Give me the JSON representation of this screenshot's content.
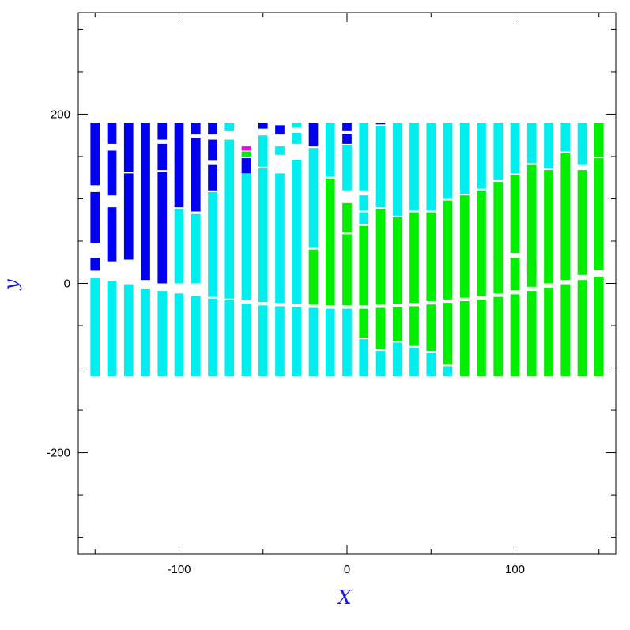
{
  "chart_data": {
    "type": "heatmap",
    "title": "",
    "xlabel": "X",
    "ylabel": "y",
    "xlim": [
      -160,
      160
    ],
    "ylim": [
      -320,
      320
    ],
    "x_ticks": [
      -100,
      0,
      100
    ],
    "y_ticks": [
      -200,
      0,
      200
    ],
    "colors": {
      "blue": "#0000ee",
      "cyan": "#00eeee",
      "green": "#00ee00",
      "magenta": "#ee00ee"
    },
    "strip_width": 5.5,
    "strips": [
      {
        "x": -150,
        "segments": [
          {
            "y0": 116,
            "y1": 190,
            "color": "blue"
          },
          {
            "y0": 48,
            "y1": 108,
            "color": "blue"
          },
          {
            "y0": 15,
            "y1": 30,
            "color": "blue"
          },
          {
            "y0": -110,
            "y1": 6,
            "color": "cyan"
          }
        ]
      },
      {
        "x": -140,
        "segments": [
          {
            "y0": 165,
            "y1": 190,
            "color": "blue"
          },
          {
            "y0": 104,
            "y1": 157,
            "color": "blue"
          },
          {
            "y0": 26,
            "y1": 90,
            "color": "blue"
          },
          {
            "y0": -110,
            "y1": 3,
            "color": "cyan"
          }
        ]
      },
      {
        "x": -130,
        "segments": [
          {
            "y0": 132,
            "y1": 190,
            "color": "blue"
          },
          {
            "y0": 28,
            "y1": 130,
            "color": "blue"
          },
          {
            "y0": -110,
            "y1": -1,
            "color": "cyan"
          }
        ]
      },
      {
        "x": -120,
        "segments": [
          {
            "y0": 4,
            "y1": 190,
            "color": "blue"
          },
          {
            "y0": -110,
            "y1": -6,
            "color": "cyan"
          }
        ]
      },
      {
        "x": -110,
        "segments": [
          {
            "y0": 170,
            "y1": 190,
            "color": "blue"
          },
          {
            "y0": 134,
            "y1": 165,
            "color": "blue"
          },
          {
            "y0": 0,
            "y1": 132,
            "color": "blue"
          },
          {
            "y0": -110,
            "y1": -9,
            "color": "cyan"
          }
        ]
      },
      {
        "x": -100,
        "segments": [
          {
            "y0": 90,
            "y1": 190,
            "color": "blue"
          },
          {
            "y0": 0,
            "y1": 88,
            "color": "cyan"
          },
          {
            "y0": -110,
            "y1": -12,
            "color": "cyan"
          }
        ]
      },
      {
        "x": -90,
        "segments": [
          {
            "y0": 176,
            "y1": 190,
            "color": "blue"
          },
          {
            "y0": 85,
            "y1": 172,
            "color": "blue"
          },
          {
            "y0": 0,
            "y1": 82,
            "color": "cyan"
          },
          {
            "y0": -110,
            "y1": -15,
            "color": "cyan"
          }
        ]
      },
      {
        "x": -80,
        "segments": [
          {
            "y0": 176,
            "y1": 190,
            "color": "blue"
          },
          {
            "y0": 145,
            "y1": 170,
            "color": "blue"
          },
          {
            "y0": 110,
            "y1": 140,
            "color": "blue"
          },
          {
            "y0": -16,
            "y1": 108,
            "color": "cyan"
          },
          {
            "y0": -110,
            "y1": -18,
            "color": "cyan"
          }
        ]
      },
      {
        "x": -70,
        "segments": [
          {
            "y0": 180,
            "y1": 190,
            "color": "cyan"
          },
          {
            "y0": -18,
            "y1": 170,
            "color": "cyan"
          },
          {
            "y0": -110,
            "y1": -20,
            "color": "cyan"
          }
        ]
      },
      {
        "x": -60,
        "segments": [
          {
            "y0": 157,
            "y1": 162,
            "color": "magenta"
          },
          {
            "y0": 150,
            "y1": 156,
            "color": "green"
          },
          {
            "y0": 130,
            "y1": 148,
            "color": "blue"
          },
          {
            "y0": -20,
            "y1": 130,
            "color": "cyan"
          },
          {
            "y0": -110,
            "y1": -24,
            "color": "cyan"
          }
        ]
      },
      {
        "x": -50,
        "segments": [
          {
            "y0": 183,
            "y1": 190,
            "color": "blue"
          },
          {
            "y0": 138,
            "y1": 175,
            "color": "cyan"
          },
          {
            "y0": -22,
            "y1": 136,
            "color": "cyan"
          },
          {
            "y0": -110,
            "y1": -26,
            "color": "cyan"
          }
        ]
      },
      {
        "x": -40,
        "segments": [
          {
            "y0": 176,
            "y1": 187,
            "color": "blue"
          },
          {
            "y0": 152,
            "y1": 162,
            "color": "cyan"
          },
          {
            "y0": -23,
            "y1": 130,
            "color": "cyan"
          },
          {
            "y0": -110,
            "y1": -27,
            "color": "cyan"
          }
        ]
      },
      {
        "x": -30,
        "segments": [
          {
            "y0": 184,
            "y1": 190,
            "color": "cyan"
          },
          {
            "y0": 165,
            "y1": 178,
            "color": "cyan"
          },
          {
            "y0": -24,
            "y1": 146,
            "color": "cyan"
          },
          {
            "y0": -110,
            "y1": -28,
            "color": "cyan"
          }
        ]
      },
      {
        "x": -20,
        "segments": [
          {
            "y0": 162,
            "y1": 190,
            "color": "blue"
          },
          {
            "y0": 42,
            "y1": 160,
            "color": "cyan"
          },
          {
            "y0": -25,
            "y1": 40,
            "color": "green"
          },
          {
            "y0": -110,
            "y1": -29,
            "color": "cyan"
          }
        ]
      },
      {
        "x": -10,
        "segments": [
          {
            "y0": 126,
            "y1": 190,
            "color": "cyan"
          },
          {
            "y0": -26,
            "y1": 124,
            "color": "green"
          },
          {
            "y0": -110,
            "y1": -30,
            "color": "cyan"
          }
        ]
      },
      {
        "x": 0,
        "segments": [
          {
            "y0": 180,
            "y1": 190,
            "color": "blue"
          },
          {
            "y0": 165,
            "y1": 177,
            "color": "blue"
          },
          {
            "y0": 110,
            "y1": 163,
            "color": "cyan"
          },
          {
            "y0": 60,
            "y1": 95,
            "color": "green"
          },
          {
            "y0": -26,
            "y1": 58,
            "color": "green"
          },
          {
            "y0": -110,
            "y1": -30,
            "color": "cyan"
          }
        ]
      },
      {
        "x": 10,
        "segments": [
          {
            "y0": 110,
            "y1": 190,
            "color": "cyan"
          },
          {
            "y0": 86,
            "y1": 104,
            "color": "cyan"
          },
          {
            "y0": 70,
            "y1": 84,
            "color": "cyan"
          },
          {
            "y0": -26,
            "y1": 68,
            "color": "green"
          },
          {
            "y0": -64,
            "y1": -30,
            "color": "green"
          },
          {
            "y0": -110,
            "y1": -66,
            "color": "cyan"
          }
        ]
      },
      {
        "x": 20,
        "segments": [
          {
            "y0": 188,
            "y1": 190,
            "color": "blue"
          },
          {
            "y0": 90,
            "y1": 186,
            "color": "cyan"
          },
          {
            "y0": -25,
            "y1": 88,
            "color": "green"
          },
          {
            "y0": -78,
            "y1": -29,
            "color": "green"
          },
          {
            "y0": -110,
            "y1": -80,
            "color": "cyan"
          }
        ]
      },
      {
        "x": 30,
        "segments": [
          {
            "y0": 80,
            "y1": 190,
            "color": "cyan"
          },
          {
            "y0": -24,
            "y1": 78,
            "color": "green"
          },
          {
            "y0": -68,
            "y1": -28,
            "color": "green"
          },
          {
            "y0": -110,
            "y1": -70,
            "color": "cyan"
          }
        ]
      },
      {
        "x": 40,
        "segments": [
          {
            "y0": 86,
            "y1": 190,
            "color": "cyan"
          },
          {
            "y0": -23,
            "y1": 84,
            "color": "green"
          },
          {
            "y0": -74,
            "y1": -27,
            "color": "green"
          },
          {
            "y0": -110,
            "y1": -76,
            "color": "cyan"
          }
        ]
      },
      {
        "x": 50,
        "segments": [
          {
            "y0": 86,
            "y1": 190,
            "color": "cyan"
          },
          {
            "y0": -21,
            "y1": 84,
            "color": "green"
          },
          {
            "y0": -80,
            "y1": -25,
            "color": "green"
          },
          {
            "y0": -110,
            "y1": -82,
            "color": "cyan"
          }
        ]
      },
      {
        "x": 60,
        "segments": [
          {
            "y0": 100,
            "y1": 190,
            "color": "cyan"
          },
          {
            "y0": -19,
            "y1": 98,
            "color": "green"
          },
          {
            "y0": -96,
            "y1": -23,
            "color": "green"
          },
          {
            "y0": -110,
            "y1": -98,
            "color": "cyan"
          }
        ]
      },
      {
        "x": 70,
        "segments": [
          {
            "y0": 106,
            "y1": 190,
            "color": "cyan"
          },
          {
            "y0": -17,
            "y1": 104,
            "color": "green"
          },
          {
            "y0": -110,
            "y1": -21,
            "color": "green"
          }
        ]
      },
      {
        "x": 80,
        "segments": [
          {
            "y0": 112,
            "y1": 190,
            "color": "cyan"
          },
          {
            "y0": -15,
            "y1": 110,
            "color": "green"
          },
          {
            "y0": -110,
            "y1": -19,
            "color": "green"
          }
        ]
      },
      {
        "x": 90,
        "segments": [
          {
            "y0": 122,
            "y1": 190,
            "color": "cyan"
          },
          {
            "y0": 28,
            "y1": 32,
            "color": "magenta"
          },
          {
            "y0": -12,
            "y1": 120,
            "color": "green"
          },
          {
            "y0": -110,
            "y1": -16,
            "color": "green"
          }
        ]
      },
      {
        "x": 100,
        "segments": [
          {
            "y0": 130,
            "y1": 190,
            "color": "cyan"
          },
          {
            "y0": 36,
            "y1": 128,
            "color": "green"
          },
          {
            "y0": -8,
            "y1": 30,
            "color": "green"
          },
          {
            "y0": -110,
            "y1": -13,
            "color": "green"
          }
        ]
      },
      {
        "x": 110,
        "segments": [
          {
            "y0": 142,
            "y1": 190,
            "color": "cyan"
          },
          {
            "y0": 10,
            "y1": 26,
            "color": "magenta"
          },
          {
            "y0": -4,
            "y1": 140,
            "color": "green"
          },
          {
            "y0": -110,
            "y1": -9,
            "color": "green"
          }
        ]
      },
      {
        "x": 120,
        "segments": [
          {
            "y0": 136,
            "y1": 190,
            "color": "cyan"
          },
          {
            "y0": 0,
            "y1": 134,
            "color": "green"
          },
          {
            "y0": -110,
            "y1": -5,
            "color": "green"
          }
        ]
      },
      {
        "x": 130,
        "segments": [
          {
            "y0": 156,
            "y1": 190,
            "color": "cyan"
          },
          {
            "y0": 4,
            "y1": 154,
            "color": "green"
          },
          {
            "y0": -110,
            "y1": -1,
            "color": "green"
          }
        ]
      },
      {
        "x": 140,
        "segments": [
          {
            "y0": 140,
            "y1": 190,
            "color": "cyan"
          },
          {
            "y0": 10,
            "y1": 134,
            "color": "green"
          },
          {
            "y0": -110,
            "y1": 4,
            "color": "green"
          }
        ]
      },
      {
        "x": 150,
        "segments": [
          {
            "y0": 150,
            "y1": 190,
            "color": "green"
          },
          {
            "y0": 16,
            "y1": 148,
            "color": "green"
          },
          {
            "y0": -110,
            "y1": 8,
            "color": "green"
          }
        ]
      }
    ]
  }
}
